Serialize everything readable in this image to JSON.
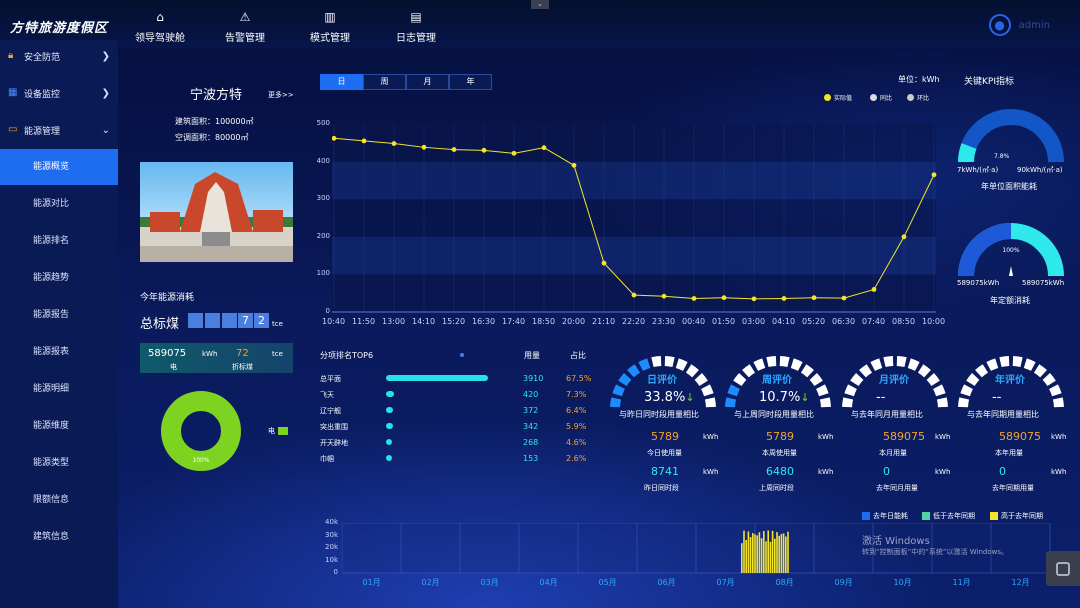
{
  "app": {
    "title": "方特旅游度假区",
    "user": "admin"
  },
  "topnav": [
    {
      "label": "领导驾驶舱",
      "icon": "dashboard-icon"
    },
    {
      "label": "告警管理",
      "icon": "warning-icon"
    },
    {
      "label": "模式管理",
      "icon": "mode-icon"
    },
    {
      "label": "日志管理",
      "icon": "log-icon"
    }
  ],
  "sidebar": {
    "groups": [
      {
        "label": "安全防范",
        "icon": "lock-icon"
      },
      {
        "label": "设备监控",
        "icon": "building-icon"
      },
      {
        "label": "能源管理",
        "icon": "energy-icon"
      }
    ],
    "items": [
      "能源概览",
      "能源对比",
      "能源排名",
      "能源趋势",
      "能源报告",
      "能源报表",
      "能源明细",
      "能源维度",
      "能源类型",
      "限额信息",
      "建筑信息"
    ],
    "active_item": "能源概览"
  },
  "building": {
    "name": "宁波方特",
    "more": "更多>>",
    "area": "建筑面积：100000㎡",
    "ac_area": "空调面积：80000㎡"
  },
  "annual": {
    "label": "今年能源消耗",
    "total_label": "总标煤",
    "digits": [
      "",
      "",
      "",
      "7",
      "2"
    ],
    "unit": "tce",
    "elec_value": "589075",
    "elec_unit": "kWh",
    "elec_label": "电",
    "coal_value": "72",
    "coal_unit": "tce",
    "coal_label": "折标煤",
    "donut_pct": "100%",
    "donut_legend": "电"
  },
  "main_chart": {
    "tabs": [
      "日",
      "周",
      "月",
      "年"
    ],
    "active_tab": "日",
    "unit": "单位：kWh",
    "legend": [
      "实际值",
      "同比",
      "环比"
    ]
  },
  "chart_data": {
    "type": "line",
    "unit": "kWh",
    "ylim": [
      0,
      500
    ],
    "y_ticks": [
      0,
      100,
      200,
      300,
      400,
      500
    ],
    "x": [
      "10:40",
      "11:50",
      "13:00",
      "14:10",
      "15:20",
      "16:30",
      "17:40",
      "18:50",
      "20:00",
      "21:10",
      "22:20",
      "23:30",
      "00:40",
      "01:50",
      "03:00",
      "04:10",
      "05:20",
      "06:30",
      "07:40",
      "08:50",
      "10:00"
    ],
    "series": [
      {
        "name": "实际值",
        "values": [
          462,
          455,
          448,
          438,
          432,
          430,
          422,
          437,
          390,
          130,
          45,
          42,
          36,
          38,
          35,
          36,
          38,
          37,
          60,
          200,
          365
        ]
      }
    ]
  },
  "bottom_chart_data": {
    "type": "bar",
    "ylim": [
      0,
      40000
    ],
    "y_ticks": [
      "0",
      "10k",
      "20k",
      "30k",
      "40k"
    ],
    "categories": [
      "01月",
      "02月",
      "03月",
      "04月",
      "05月",
      "06月",
      "07月",
      "08月",
      "09月",
      "10月",
      "11月",
      "12月"
    ],
    "legend": [
      "去年日能耗",
      "低于去年同期",
      "高于去年同期"
    ],
    "colors": [
      "#1e6cf0",
      "#4fd5a0",
      "#f5e528"
    ],
    "series": [
      {
        "name": "高于去年同期",
        "values": [
          0,
          0,
          0,
          0,
          0,
          0,
          0,
          34000,
          0,
          0,
          0,
          0
        ]
      }
    ]
  },
  "top6": {
    "title": "分项排名TOP6",
    "col_value": "用量",
    "col_pct": "占比",
    "rows": [
      {
        "name": "总平面",
        "value": "3910",
        "pct": "67.5%",
        "ratio": 1.0
      },
      {
        "name": "飞天",
        "value": "420",
        "pct": "7.3%",
        "ratio": 0.08
      },
      {
        "name": "辽宁舰",
        "value": "372",
        "pct": "6.4%",
        "ratio": 0.07
      },
      {
        "name": "突出重围",
        "value": "342",
        "pct": "5.9%",
        "ratio": 0.065
      },
      {
        "name": "开天辟地",
        "value": "268",
        "pct": "4.6%",
        "ratio": 0.055
      },
      {
        "name": "巾帼",
        "value": "153",
        "pct": "2.6%",
        "ratio": 0.03
      }
    ]
  },
  "evaluations": [
    {
      "title": "日评价",
      "value": "33.8%",
      "arrow": "↓",
      "desc": "与昨日同时段用量相比",
      "current": "5789",
      "current_label": "今日使用量",
      "previous": "8741",
      "previous_label": "昨日同时段",
      "unit": "kWh",
      "fill": 0.34
    },
    {
      "title": "周评价",
      "value": "10.7%",
      "arrow": "↓",
      "desc": "与上周同时段用量相比",
      "current": "5789",
      "current_label": "本周使用量",
      "previous": "6480",
      "previous_label": "上周同时段",
      "unit": "kWh",
      "fill": 0.11
    },
    {
      "title": "月评价",
      "value": "--",
      "arrow": "",
      "desc": "与去年同月用量相比",
      "current": "589075",
      "current_label": "本月用量",
      "previous": "0",
      "previous_label": "去年同月用量",
      "unit": "kWh",
      "fill": 0
    },
    {
      "title": "年评价",
      "value": "--",
      "arrow": "",
      "desc": "与去年同期用量相比",
      "current": "589075",
      "current_label": "本年用量",
      "previous": "0",
      "previous_label": "去年同期用量",
      "unit": "kWh",
      "fill": 0
    }
  ],
  "kpi": {
    "title": "关键KPI指标",
    "g1_pct": "7.8%",
    "g1_min": "7kWh/(㎡·a)",
    "g1_max": "90kWh/(㎡·a)",
    "g1_label": "年单位面积能耗",
    "g2_pct": "100%",
    "g2_min": "589075kWh",
    "g2_max": "589075kWh",
    "g2_label": "年定额消耗"
  },
  "watermark": {
    "line1": "激活 Windows",
    "line2": "转到“控制面板”中的“系统”以激活 Windows。"
  }
}
